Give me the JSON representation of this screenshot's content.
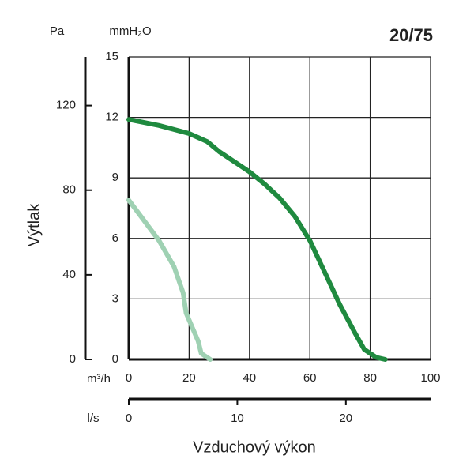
{
  "chart_data": {
    "type": "line",
    "title": "20/75",
    "ylabel": "Výtlak",
    "xlabel": "Vzduchový výkon",
    "yunit": "mmH₂O",
    "y2unit": "Pa",
    "xunit": "m³/h",
    "x2unit": "l/s",
    "xlim": [
      0,
      100
    ],
    "xticks": [
      0,
      20,
      40,
      60,
      80,
      100
    ],
    "ylim": [
      0,
      15
    ],
    "yticks": [
      0,
      3,
      6,
      9,
      12,
      15
    ],
    "y2lim": [
      0,
      143
    ],
    "y2ticks": [
      0,
      40,
      80,
      120
    ],
    "x2lim": [
      0,
      27.8
    ],
    "x2ticks": [
      0,
      10,
      20
    ],
    "grid": true,
    "series": [
      {
        "color": "#1f8a3f",
        "x": [
          0,
          10,
          20,
          26,
          30,
          40,
          45,
          50,
          55,
          60,
          65,
          70,
          75,
          78,
          82,
          85
        ],
        "values": [
          11.9,
          11.6,
          11.2,
          10.8,
          10.3,
          9.3,
          8.7,
          8.0,
          7.1,
          5.9,
          4.3,
          2.7,
          1.3,
          0.5,
          0.1,
          0
        ]
      },
      {
        "color": "#9fd1b3",
        "x": [
          0,
          5,
          10,
          15,
          18,
          19,
          21,
          23,
          24,
          27
        ],
        "values": [
          7.9,
          6.9,
          5.9,
          4.6,
          3.3,
          2.3,
          1.6,
          0.9,
          0.3,
          0
        ]
      }
    ]
  }
}
